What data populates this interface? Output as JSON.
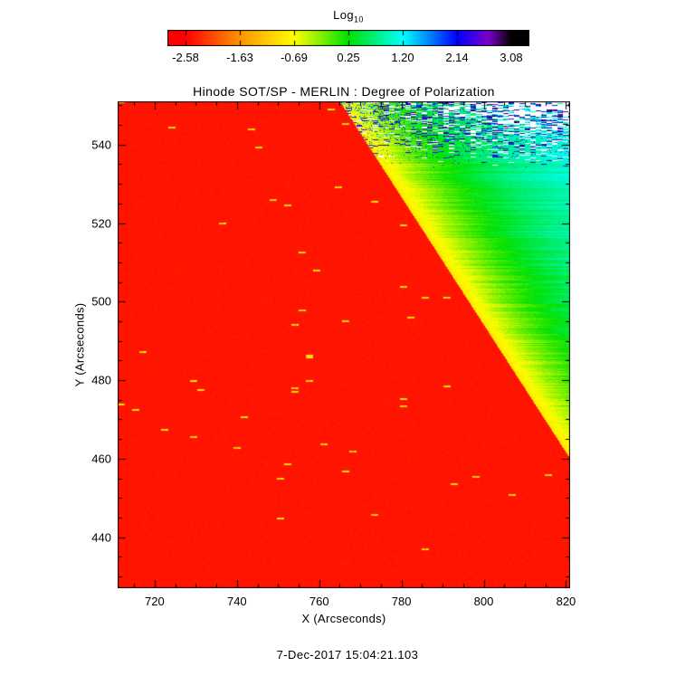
{
  "page": {
    "background": "#ffffff",
    "timestamp": "7-Dec-2017 15:04:21.103"
  },
  "chart_data": {
    "type": "heatmap",
    "title": "Hinode SOT/SP - MERLIN : Degree of Polarization",
    "xlabel": "X (Arcseconds)",
    "ylabel": "Y (Arcseconds)",
    "xlim": [
      711,
      821
    ],
    "ylim": [
      427,
      551
    ],
    "xticks": [
      720,
      740,
      760,
      780,
      800,
      820
    ],
    "yticks": [
      440,
      460,
      480,
      500,
      520,
      540
    ],
    "grid": false,
    "legend": "none",
    "colorbar": {
      "orientation": "horizontal",
      "position": "top",
      "label": "Log",
      "label_subscript": "10",
      "tick_labels": [
        "-2.58",
        "-1.63",
        "-0.69",
        "0.25",
        "1.20",
        "2.14",
        "3.08"
      ],
      "tick_values": [
        -2.58,
        -1.63,
        -0.69,
        0.25,
        1.2,
        2.14,
        3.08
      ],
      "colormap_stops": [
        {
          "t": 0.0,
          "color": "#ff0000"
        },
        {
          "t": 0.168,
          "color": "#ff9600"
        },
        {
          "t": 0.334,
          "color": "#ffff00"
        },
        {
          "t": 0.5,
          "color": "#00e100"
        },
        {
          "t": 0.668,
          "color": "#00ffff"
        },
        {
          "t": 0.834,
          "color": "#0000ff"
        },
        {
          "t": 0.93,
          "color": "#7d00c8"
        },
        {
          "t": 1.0,
          "color": "#000000"
        }
      ]
    },
    "field_model": {
      "description": "log10 degree of polarization: uniform low signal (~ -2.5, red) over most of the map with sparse tiny yellow-orange flecks; a sharp diagonal boundary runs from (x=765, y=551) to (x=821, y=460); above-right of it values climb through yellow (~ -0.7) and green (~0.3) to cyan (~1.1), with horizontal scan-line striping; the upper-right corner shows dense blue/black speckle dashes (values ~1.7-3.2) and white missing-data gaps",
      "background_value": -2.5,
      "boundary_line": {
        "x1": 765,
        "y1": 551,
        "x2": 821,
        "y2": 460
      },
      "boundary_value": -0.9,
      "asymptotic_value": 1.35,
      "gradient_scale": 24,
      "speck_value_range": [
        -1.5,
        -0.6
      ],
      "speckle_value_range": [
        1.7,
        3.2
      ],
      "missing_data_color": "#ffffff"
    }
  }
}
